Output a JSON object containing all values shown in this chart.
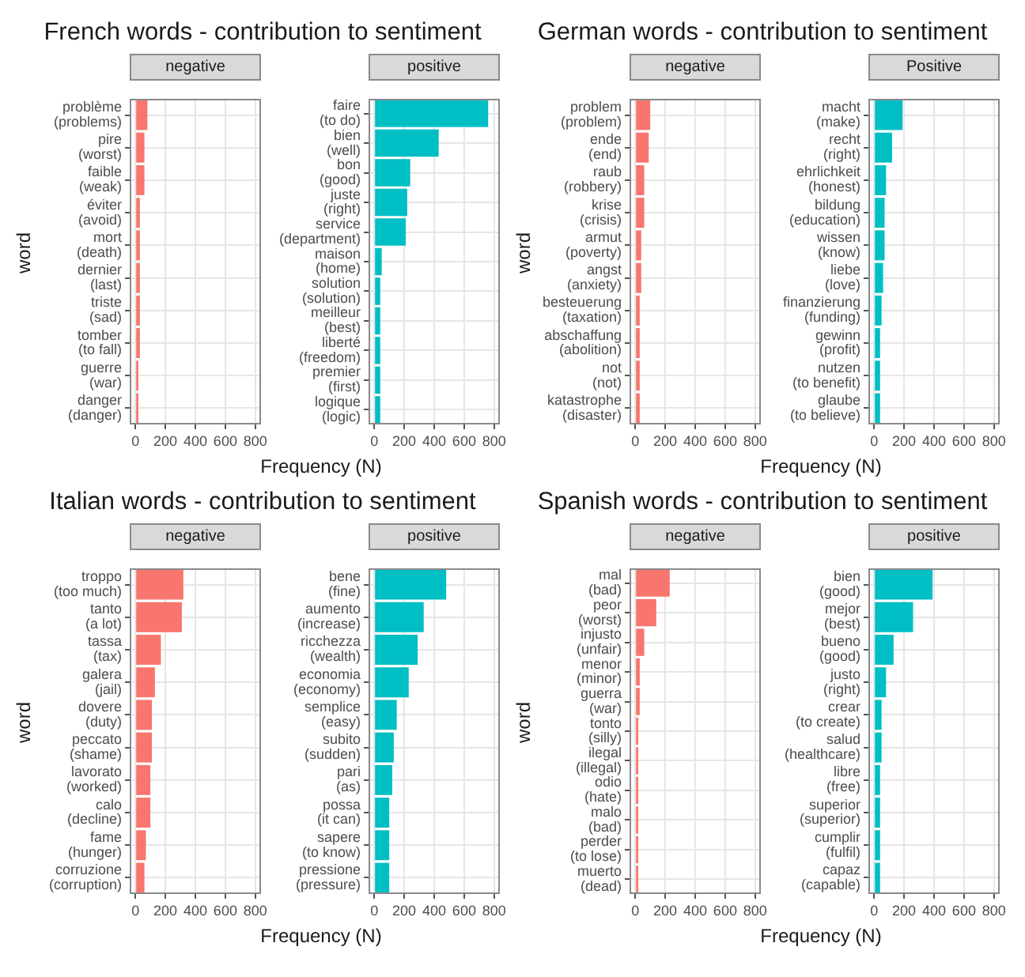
{
  "chart_data": [
    {
      "type": "bar",
      "orientation": "horizontal",
      "title": "French words - contribution to sentiment",
      "subtitle": "negative",
      "xlabel": "Frequency (N)",
      "ylabel": "word",
      "categories": [
        "problème\n(problems)",
        "pire\n(worst)",
        "faible\n(weak)",
        "éviter\n(avoid)",
        "mort\n(death)",
        "dernier\n(last)",
        "triste\n(sad)",
        "tomber\n(to fall)",
        "guerre\n(war)",
        "danger\n(danger)"
      ],
      "values": [
        80,
        60,
        60,
        30,
        30,
        30,
        30,
        30,
        20,
        20
      ],
      "color": "#f8766d",
      "xlim": [
        -38,
        838
      ],
      "xticks": [
        0,
        200,
        400,
        600,
        800
      ],
      "grid": true
    },
    {
      "type": "bar",
      "orientation": "horizontal",
      "subtitle": "positive",
      "categories": [
        "faire\n(to do)",
        "bien\n(well)",
        "bon\n(good)",
        "juste\n(right)",
        "service\n(department)",
        "maison\n(home)",
        "solution\n(solution)",
        "meilleur\n(best)",
        "liberté\n(freedom)",
        "premier\n(first)",
        "logique\n(logic)"
      ],
      "values": [
        760,
        430,
        240,
        220,
        210,
        50,
        40,
        40,
        40,
        40,
        40
      ],
      "color": "#00bfc4",
      "xlim": [
        -38,
        838
      ],
      "xticks": [
        0,
        200,
        400,
        600,
        800
      ],
      "grid": true
    },
    {
      "type": "bar",
      "orientation": "horizontal",
      "title": "German words - contribution to sentiment",
      "subtitle": "negative",
      "xlabel": "Frequency (N)",
      "ylabel": "word",
      "categories": [
        "problem\n(problem)",
        "ende\n(end)",
        "raub\n(robbery)",
        "krise\n(crisis)",
        "armut\n(poverty)",
        "angst\n(anxiety)",
        "besteuerung\n(taxation)",
        "abschaffung\n(abolition)",
        "not\n(not)",
        "katastrophe\n(disaster)"
      ],
      "values": [
        100,
        90,
        60,
        60,
        40,
        40,
        30,
        30,
        30,
        30
      ],
      "color": "#f8766d",
      "xlim": [
        -38,
        838
      ],
      "xticks": [
        0,
        200,
        400,
        600,
        800
      ],
      "grid": true
    },
    {
      "type": "bar",
      "orientation": "horizontal",
      "subtitle": "Positive",
      "categories": [
        "macht\n(make)",
        "recht\n(right)",
        "ehrlichkeit\n(honest)",
        "bildung\n(education)",
        "wissen\n(know)",
        "liebe\n(love)",
        "finanzierung\n(funding)",
        "gewinn\n(profit)",
        "nutzen\n(to benefit)",
        "glaube\n(to believe)"
      ],
      "values": [
        190,
        120,
        80,
        70,
        70,
        60,
        50,
        40,
        40,
        40
      ],
      "color": "#00bfc4",
      "xlim": [
        -38,
        838
      ],
      "xticks": [
        0,
        200,
        400,
        600,
        800
      ],
      "grid": true
    },
    {
      "type": "bar",
      "orientation": "horizontal",
      "title": "Italian words - contribution to sentiment",
      "subtitle": "negative",
      "xlabel": "Frequency (N)",
      "ylabel": "word",
      "categories": [
        "troppo\n(too much)",
        "tanto\n(a lot)",
        "tassa\n(tax)",
        "galera\n(jail)",
        "dovere\n(duty)",
        "peccato\n(shame)",
        "lavorato\n(worked)",
        "calo\n(decline)",
        "fame\n(hunger)",
        "corruzione\n(corruption)"
      ],
      "values": [
        320,
        310,
        170,
        130,
        110,
        110,
        100,
        100,
        70,
        60
      ],
      "color": "#f8766d",
      "xlim": [
        -38,
        838
      ],
      "xticks": [
        0,
        200,
        400,
        600,
        800
      ],
      "grid": true
    },
    {
      "type": "bar",
      "orientation": "horizontal",
      "subtitle": "positive",
      "categories": [
        "bene\n(fine)",
        "aumento\n(increase)",
        "ricchezza\n(wealth)",
        "economia\n(economy)",
        "semplice\n(easy)",
        "subito\n(sudden)",
        "pari\n(as)",
        "possa\n(it can)",
        "sapere\n(to know)",
        "pressione\n(pressure)"
      ],
      "values": [
        480,
        330,
        290,
        230,
        150,
        130,
        120,
        100,
        100,
        100
      ],
      "color": "#00bfc4",
      "xlim": [
        -38,
        838
      ],
      "xticks": [
        0,
        200,
        400,
        600,
        800
      ],
      "grid": true
    },
    {
      "type": "bar",
      "orientation": "horizontal",
      "title": "Spanish words - contribution to sentiment",
      "subtitle": "negative",
      "xlabel": "Frequency (N)",
      "ylabel": "word",
      "categories": [
        "mal\n(bad)",
        "peor\n(worst)",
        "injusto\n(unfair)",
        "menor\n(minor)",
        "guerra\n(war)",
        "tonto\n(silly)",
        "ilegal\n(illegal)",
        "odio\n(hate)",
        "malo\n(bad)",
        "perder\n(to lose)",
        "muerto\n(dead)"
      ],
      "values": [
        230,
        140,
        60,
        30,
        30,
        20,
        20,
        20,
        20,
        20,
        20
      ],
      "color": "#f8766d",
      "xlim": [
        -38,
        838
      ],
      "xticks": [
        0,
        200,
        400,
        600,
        800
      ],
      "grid": true
    },
    {
      "type": "bar",
      "orientation": "horizontal",
      "subtitle": "positive",
      "categories": [
        "bien\n(good)",
        "mejor\n(best)",
        "bueno\n(good)",
        "justo\n(right)",
        "crear\n(to create)",
        "salud\n(healthcare)",
        "libre\n(free)",
        "superior\n(superior)",
        "cumplir\n(fulfil)",
        "capaz\n(capable)"
      ],
      "values": [
        390,
        260,
        130,
        80,
        50,
        50,
        40,
        40,
        40,
        40
      ],
      "color": "#00bfc4",
      "xlim": [
        -38,
        838
      ],
      "xticks": [
        0,
        200,
        400,
        600,
        800
      ],
      "grid": true
    }
  ]
}
